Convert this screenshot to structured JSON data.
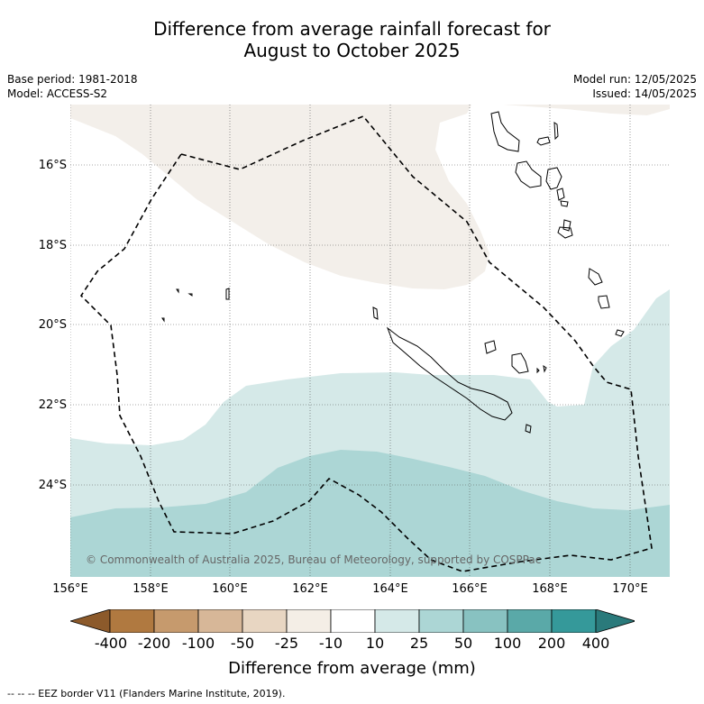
{
  "title_line1": "Difference from average rainfall forecast for",
  "title_line2": "August to October 2025",
  "meta_left": [
    "Base period: 1981-2018",
    "Model: ACCESS-S2"
  ],
  "meta_right": [
    "Model run: 12/05/2025",
    "Issued: 14/05/2025"
  ],
  "lat_labels": [
    "16°S",
    "18°S",
    "20°S",
    "22°S",
    "24°S"
  ],
  "lon_labels": [
    "156°E",
    "158°E",
    "160°E",
    "162°E",
    "164°E",
    "166°E",
    "168°E",
    "170°E"
  ],
  "copyright": "© Commonwealth of Australia 2025, Bureau of Meteorology, supported by COSPPac",
  "colorbar": {
    "labels": [
      "-400",
      "-200",
      "-100",
      "-50",
      "-25",
      "-10",
      "10",
      "25",
      "50",
      "100",
      "200",
      "400"
    ],
    "colors": [
      "#8c5a2b",
      "#b07940",
      "#c69a6d",
      "#d7b798",
      "#e8d6c2",
      "#f4eee6",
      "#ffffff",
      "#d5e9e8",
      "#acd6d5",
      "#88c2c1",
      "#5aa9a8",
      "#35999a",
      "#2a7a7b"
    ],
    "title": "Difference from average (mm)"
  },
  "footer": "-- -- -- EEZ border V11 (Flanders Marine Institute, 2019)."
}
